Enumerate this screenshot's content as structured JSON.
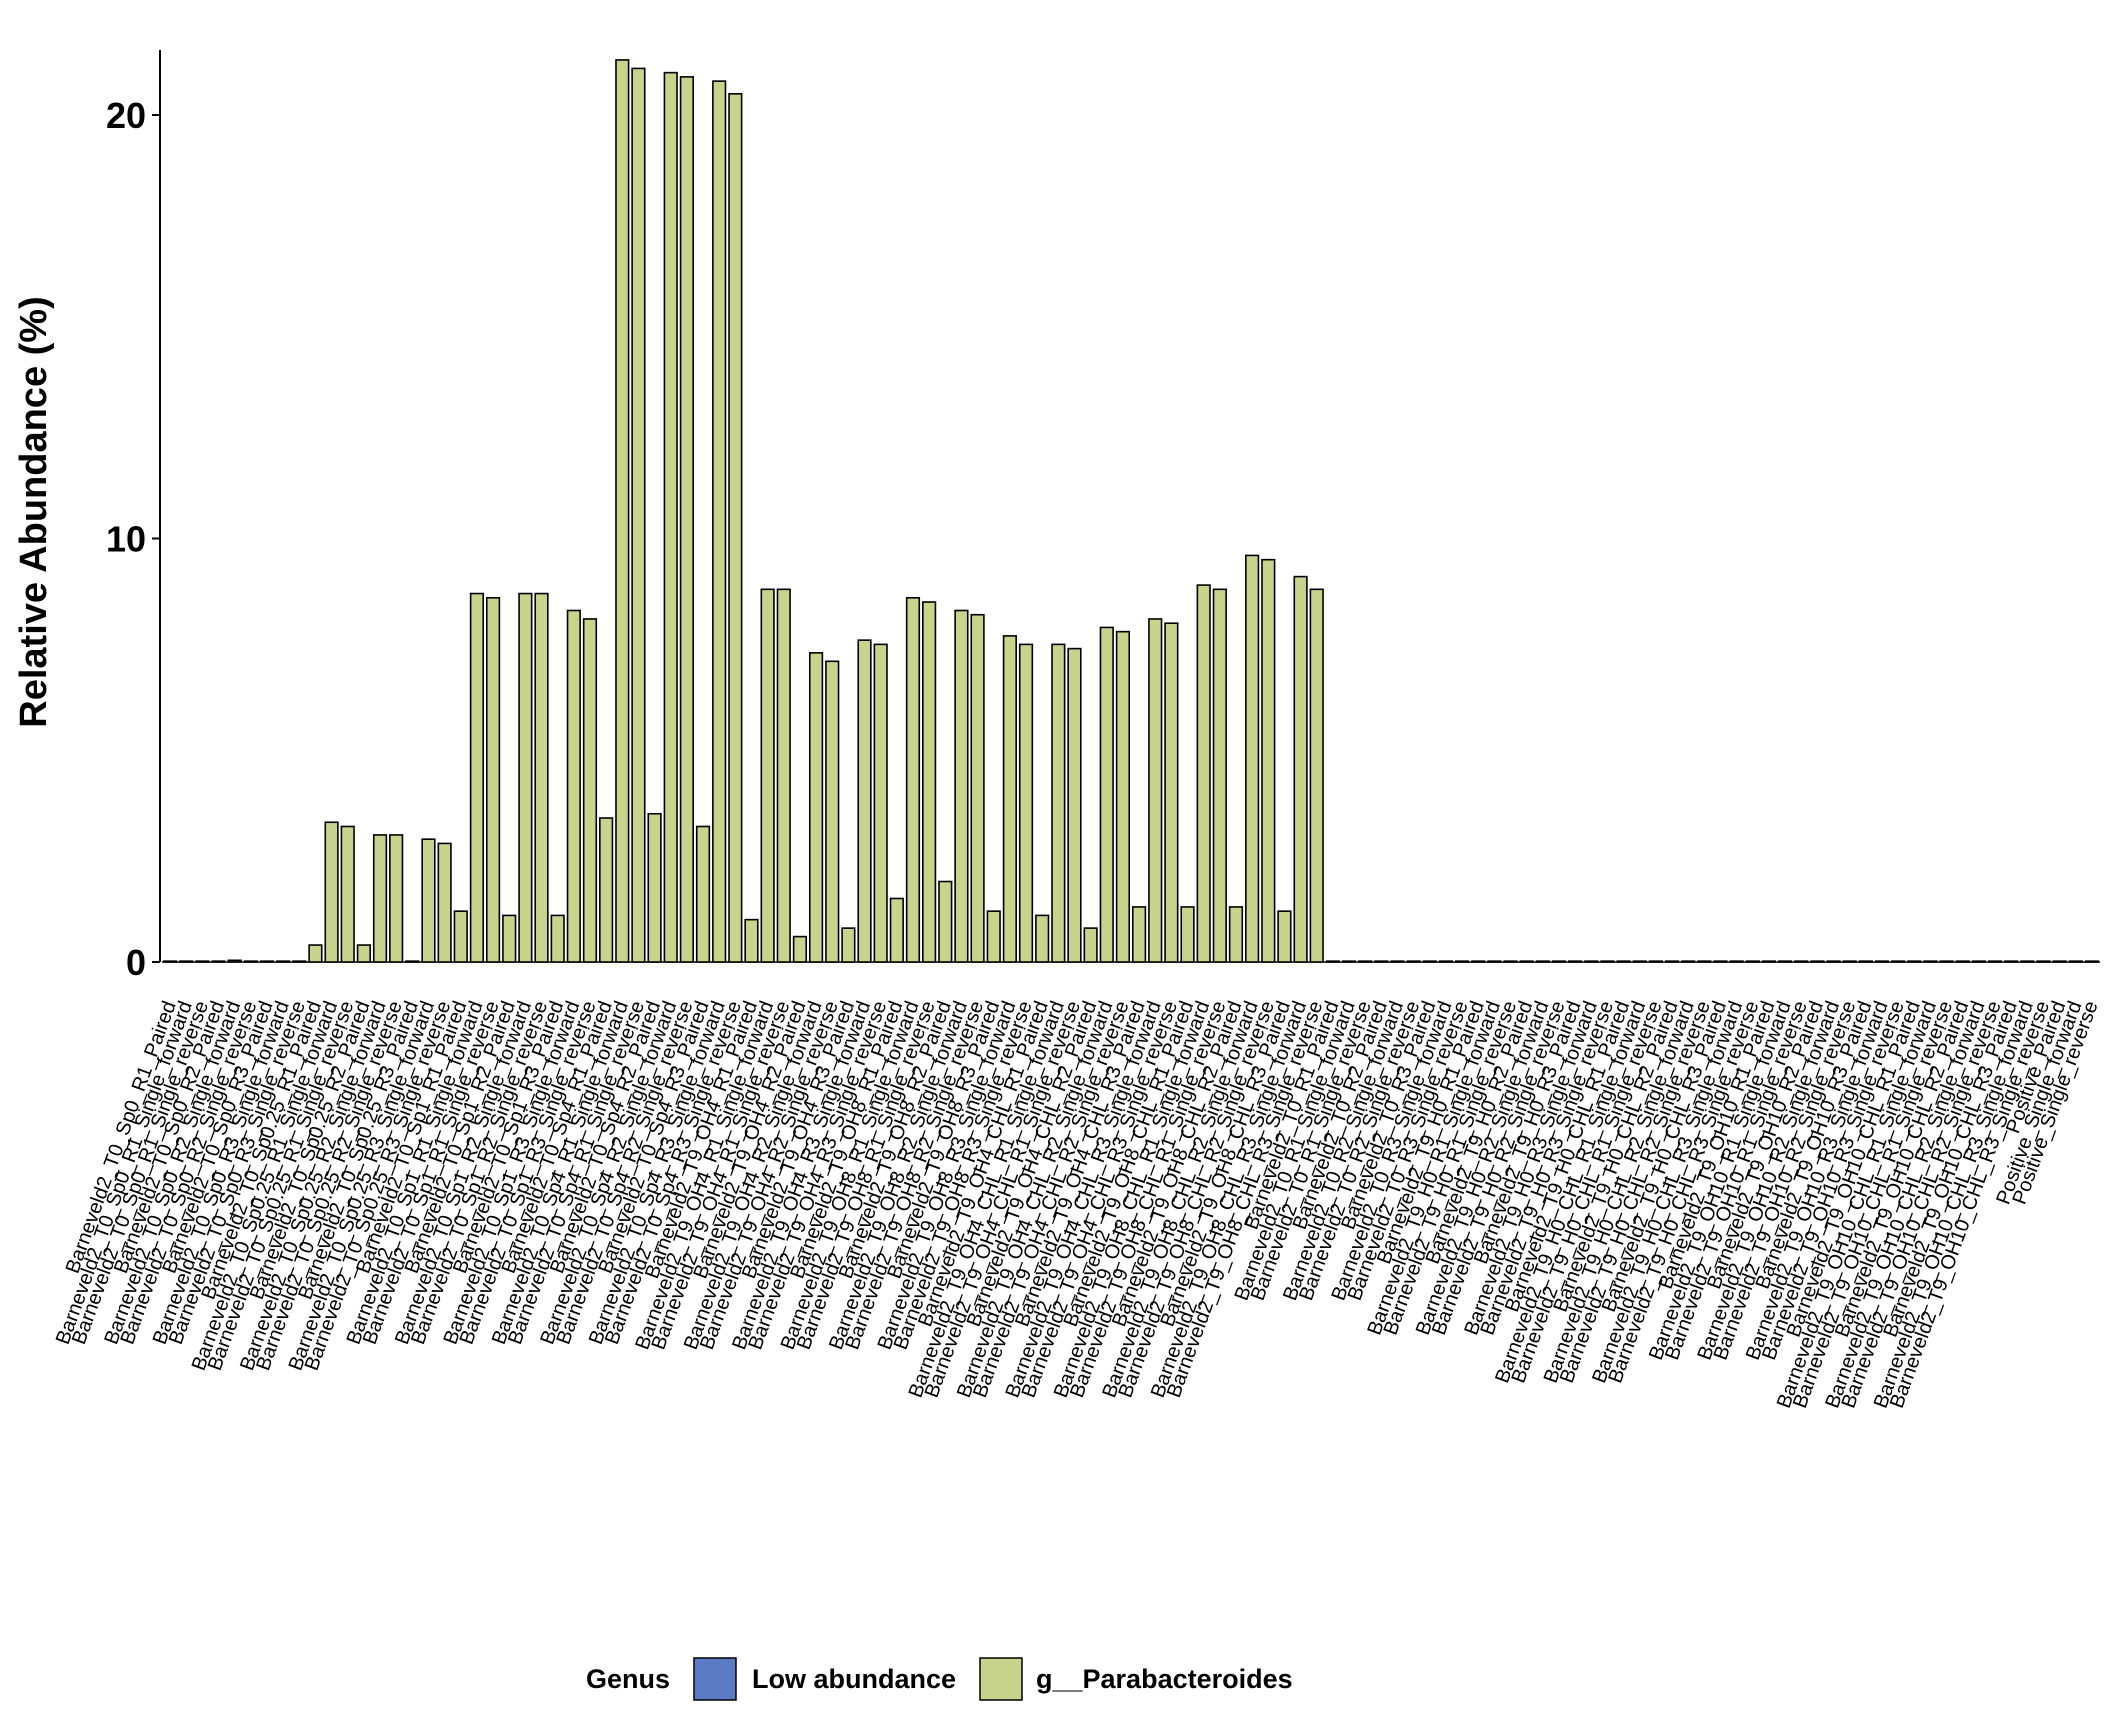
{
  "chart_data": {
    "type": "bar",
    "ylabel": "Relative Abundance (%)",
    "xlabel": "",
    "ylim": [
      0,
      22
    ],
    "yticks": [
      0,
      10,
      20
    ],
    "grid": false,
    "legend": {
      "title": "Genus",
      "position": "bottom",
      "entries": [
        {
          "name": "Low abundance",
          "color": "#5b7cc4"
        },
        {
          "name": "g__Parabacteroides",
          "color": "#c8d48b"
        }
      ]
    },
    "categories": [
      "Barneveld2_T0_Sp0_R1_Paired",
      "Barneveld2_T0_Sp0_R1_Single_forward",
      "Barneveld2_T0_Sp0_R1_Single_reverse",
      "Barneveld2_T0_Sp0_R2_Paired",
      "Barneveld2_T0_Sp0_R2_Single_forward",
      "Barneveld2_T0_Sp0_R2_Single_reverse",
      "Barneveld2_T0_Sp0_R3_Paired",
      "Barneveld2_T0_Sp0_R3_Single_forward",
      "Barneveld2_T0_Sp0_R3_Single_reverse",
      "Barneveld2_T0_Sp0.25_R1_Paired",
      "Barneveld2_T0_Sp0.25_R1_Single_forward",
      "Barneveld2_T0_Sp0.25_R1_Single_reverse",
      "Barneveld2_T0_Sp0.25_R2_Paired",
      "Barneveld2_T0_Sp0.25_R2_Single_forward",
      "Barneveld2_T0_Sp0.25_R2_Single_reverse",
      "Barneveld2_T0_Sp0.25_R3_Paired",
      "Barneveld2_T0_Sp0.25_R3_Single_forward",
      "Barneveld2_T0_Sp0.25_R3_Single_reverse",
      "Barneveld2_T0_Sp1_R1_Paired",
      "Barneveld2_T0_Sp1_R1_Single_forward",
      "Barneveld2_T0_Sp1_R1_Single_reverse",
      "Barneveld2_T0_Sp1_R2_Paired",
      "Barneveld2_T0_Sp1_R2_Single_forward",
      "Barneveld2_T0_Sp1_R2_Single_reverse",
      "Barneveld2_T0_Sp1_R3_Paired",
      "Barneveld2_T0_Sp1_R3_Single_forward",
      "Barneveld2_T0_Sp1_R3_Single_reverse",
      "Barneveld2_T0_Sp4_R1_Paired",
      "Barneveld2_T0_Sp4_R1_Single_forward",
      "Barneveld2_T0_Sp4_R1_Single_reverse",
      "Barneveld2_T0_Sp4_R2_Paired",
      "Barneveld2_T0_Sp4_R2_Single_forward",
      "Barneveld2_T0_Sp4_R2_Single_reverse",
      "Barneveld2_T0_Sp4_R3_Paired",
      "Barneveld2_T0_Sp4_R3_Single_forward",
      "Barneveld2_T0_Sp4_R3_Single_reverse",
      "Barneveld2_T9_OH4_R1_Paired",
      "Barneveld2_T9_OH4_R1_Single_forward",
      "Barneveld2_T9_OH4_R1_Single_reverse",
      "Barneveld2_T9_OH4_R2_Paired",
      "Barneveld2_T9_OH4_R2_Single_forward",
      "Barneveld2_T9_OH4_R2_Single_reverse",
      "Barneveld2_T9_OH4_R3_Paired",
      "Barneveld2_T9_OH4_R3_Single_forward",
      "Barneveld2_T9_OH4_R3_Single_reverse",
      "Barneveld2_T9_OH8_R1_Paired",
      "Barneveld2_T9_OH8_R1_Single_forward",
      "Barneveld2_T9_OH8_R1_Single_reverse",
      "Barneveld2_T9_OH8_R2_Paired",
      "Barneveld2_T9_OH8_R2_Single_forward",
      "Barneveld2_T9_OH8_R2_Single_reverse",
      "Barneveld2_T9_OH8_R3_Paired",
      "Barneveld2_T9_OH8_R3_Single_forward",
      "Barneveld2_T9_OH8_R3_Single_reverse",
      "Barneveld2_T9_OH4_CHL_R1_Paired",
      "Barneveld2_T9_OH4_CHL_R1_Single_forward",
      "Barneveld2_T9_OH4_CHL_R1_Single_reverse",
      "Barneveld2_T9_OH4_CHL_R2_Paired",
      "Barneveld2_T9_OH4_CHL_R2_Single_forward",
      "Barneveld2_T9_OH4_CHL_R2_Single_reverse",
      "Barneveld2_T9_OH4_CHL_R3_Paired",
      "Barneveld2_T9_OH4_CHL_R3_Single_forward",
      "Barneveld2_T9_OH4_CHL_R3_Single_reverse",
      "Barneveld2_T9_OH8_CHL_R1_Paired",
      "Barneveld2_T9_OH8_CHL_R1_Single_forward",
      "Barneveld2_T9_OH8_CHL_R1_Single_reverse",
      "Barneveld2_T9_OH8_CHL_R2_Paired",
      "Barneveld2_T9_OH8_CHL_R2_Single_forward",
      "Barneveld2_T9_OH8_CHL_R2_Single_reverse",
      "Barneveld2_T9_OH8_CHL_R3_Paired",
      "Barneveld2_T9_OH8_CHL_R3_Single_forward",
      "Barneveld2_T9_OH8_CHL_R3_Single_reverse",
      "Barneveld2_T0_R1_Paired",
      "Barneveld2_T0_R1_Single_forward",
      "Barneveld2_T0_R1_Single_reverse",
      "Barneveld2_T0_R2_Paired",
      "Barneveld2_T0_R2_Single_forward",
      "Barneveld2_T0_R2_Single_reverse",
      "Barneveld2_T0_R3_Paired",
      "Barneveld2_T0_R3_Single_forward",
      "Barneveld2_T0_R3_Single_reverse",
      "Barneveld2_T9_H0_R1_Paired",
      "Barneveld2_T9_H0_R1_Single_forward",
      "Barneveld2_T9_H0_R1_Single_reverse",
      "Barneveld2_T9_H0_R2_Paired",
      "Barneveld2_T9_H0_R2_Single_forward",
      "Barneveld2_T9_H0_R2_Single_reverse",
      "Barneveld2_T9_H0_R3_Paired",
      "Barneveld2_T9_H0_R3_Single_forward",
      "Barneveld2_T9_H0_R3_Single_reverse",
      "Barneveld2_T9_H0_CHL_R1_Paired",
      "Barneveld2_T9_H0_CHL_R1_Single_forward",
      "Barneveld2_T9_H0_CHL_R1_Single_reverse",
      "Barneveld2_T9_H0_CHL_R2_Paired",
      "Barneveld2_T9_H0_CHL_R2_Single_forward",
      "Barneveld2_T9_H0_CHL_R2_Single_reverse",
      "Barneveld2_T9_H0_CHL_R3_Paired",
      "Barneveld2_T9_H0_CHL_R3_Single_forward",
      "Barneveld2_T9_H0_CHL_R3_Single_reverse",
      "Barneveld2_T9_OH10_R1_Paired",
      "Barneveld2_T9_OH10_R1_Single_forward",
      "Barneveld2_T9_OH10_R1_Single_reverse",
      "Barneveld2_T9_OH10_R2_Paired",
      "Barneveld2_T9_OH10_R2_Single_forward",
      "Barneveld2_T9_OH10_R2_Single_reverse",
      "Barneveld2_T9_OH10_R3_Paired",
      "Barneveld2_T9_OH10_R3_Single_forward",
      "Barneveld2_T9_OH10_R3_Single_reverse",
      "Barneveld2_T9_OH10_CHL_R1_Paired",
      "Barneveld2_T9_OH10_CHL_R1_Single_forward",
      "Barneveld2_T9_OH10_CHL_R1_Single_reverse",
      "Barneveld2_T9_OH10_CHL_R2_Paired",
      "Barneveld2_T9_OH10_CHL_R2_Single_forward",
      "Barneveld2_T9_OH10_CHL_R2_Single_reverse",
      "Barneveld2_T9_OH10_CHL_R3_Paired",
      "Barneveld2_T9_OH10_CHL_R3_Single_forward",
      "Barneveld2_T9_OH10_CHL_R3_Single_reverse",
      "Positive_Paired",
      "Positive_Single_forward",
      "Positive_Single_reverse"
    ],
    "series": [
      {
        "name": "g__Parabacteroides",
        "color": "#c8d48b",
        "values": [
          0.02,
          0.02,
          0.02,
          0.02,
          0.04,
          0.02,
          0.02,
          0.02,
          0.02,
          0.4,
          3.3,
          3.2,
          0.4,
          3.0,
          3.0,
          0.02,
          2.9,
          2.8,
          1.2,
          8.7,
          8.6,
          1.1,
          8.7,
          8.7,
          1.1,
          8.3,
          8.1,
          3.4,
          21.3,
          21.1,
          3.5,
          21.0,
          20.9,
          3.2,
          20.8,
          20.5,
          1.0,
          8.8,
          8.8,
          0.6,
          7.3,
          7.1,
          0.8,
          7.6,
          7.5,
          1.5,
          8.6,
          8.5,
          1.9,
          8.3,
          8.2,
          1.2,
          7.7,
          7.5,
          1.1,
          7.5,
          7.4,
          0.8,
          7.9,
          7.8,
          1.3,
          8.1,
          8.0,
          1.3,
          8.9,
          8.8,
          1.3,
          9.6,
          9.5,
          1.2,
          9.1,
          8.8,
          0.02,
          0.02,
          0.02,
          0.02,
          0.02,
          0.02,
          0.02,
          0.02,
          0.02,
          0.02,
          0.02,
          0.02,
          0.02,
          0.02,
          0.02,
          0.02,
          0.02,
          0.02,
          0.02,
          0.02,
          0.02,
          0.02,
          0.02,
          0.02,
          0.02,
          0.02,
          0.02,
          0.02,
          0.02,
          0.02,
          0.02,
          0.02,
          0.02,
          0.02,
          0.02,
          0.02,
          0.02,
          0.02,
          0.02,
          0.02,
          0.02,
          0.02,
          0.02,
          0.02,
          0.02,
          0.02,
          0.02,
          0.02
        ]
      }
    ]
  }
}
